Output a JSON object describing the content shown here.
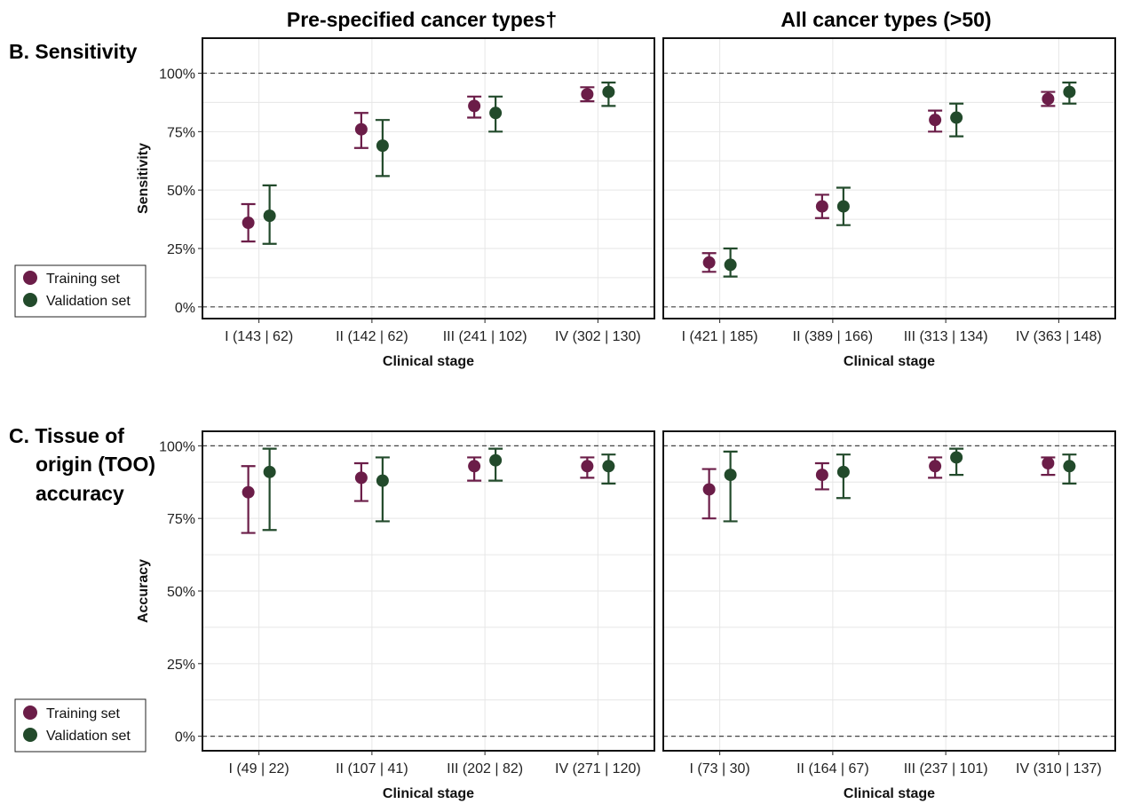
{
  "column_titles": [
    "Pre-specified cancer types†",
    "All cancer types (>50)"
  ],
  "row_titles": {
    "sensitivity": [
      "B. Sensitivity"
    ],
    "too": [
      "C. Tissue of",
      "origin (TOO)",
      "accuracy"
    ]
  },
  "legend": {
    "training_label": "Training set",
    "validation_label": "Validation set"
  },
  "colors": {
    "training": "#6b1d48",
    "validation": "#224a2b",
    "panel_border": "#111111",
    "grid": "#e6e6e6",
    "reference_line": "#444444"
  },
  "chart_data": [
    {
      "type": "scatter",
      "title": "Pre-specified cancer types†",
      "row": "B. Sensitivity",
      "xlabel": "Clinical stage",
      "ylabel": "Sensitivity",
      "ylim": [
        -0.05,
        1.15
      ],
      "yticks": [
        "0%",
        "25%",
        "50%",
        "75%",
        "100%"
      ],
      "categories": [
        "I (143 | 62)",
        "II (142 | 62)",
        "III (241 | 102)",
        "IV (302 | 130)"
      ],
      "series": [
        {
          "name": "Training set",
          "values": [
            0.36,
            0.76,
            0.86,
            0.91
          ],
          "lower": [
            0.28,
            0.68,
            0.81,
            0.88
          ],
          "upper": [
            0.44,
            0.83,
            0.9,
            0.94
          ]
        },
        {
          "name": "Validation set",
          "values": [
            0.39,
            0.69,
            0.83,
            0.92
          ],
          "lower": [
            0.27,
            0.56,
            0.75,
            0.86
          ],
          "upper": [
            0.52,
            0.8,
            0.9,
            0.96
          ]
        }
      ],
      "reference_lines": [
        0,
        1
      ],
      "grid": true
    },
    {
      "type": "scatter",
      "title": "All cancer types (>50)",
      "row": "B. Sensitivity",
      "xlabel": "Clinical stage",
      "ylabel": "",
      "ylim": [
        -0.05,
        1.15
      ],
      "yticks": [],
      "categories": [
        "I (421 | 185)",
        "II (389 | 166)",
        "III (313 | 134)",
        "IV (363 | 148)"
      ],
      "series": [
        {
          "name": "Training set",
          "values": [
            0.19,
            0.43,
            0.8,
            0.89
          ],
          "lower": [
            0.15,
            0.38,
            0.75,
            0.86
          ],
          "upper": [
            0.23,
            0.48,
            0.84,
            0.92
          ]
        },
        {
          "name": "Validation set",
          "values": [
            0.18,
            0.43,
            0.81,
            0.92
          ],
          "lower": [
            0.13,
            0.35,
            0.73,
            0.87
          ],
          "upper": [
            0.25,
            0.51,
            0.87,
            0.96
          ]
        }
      ],
      "reference_lines": [
        0,
        1
      ],
      "grid": true
    },
    {
      "type": "scatter",
      "title": "",
      "row": "C. Tissue of origin (TOO) accuracy",
      "xlabel": "Clinical stage",
      "ylabel": "Accuracy",
      "ylim": [
        -0.05,
        1.05
      ],
      "yticks": [
        "0%",
        "25%",
        "50%",
        "75%",
        "100%"
      ],
      "categories": [
        "I (49 | 22)",
        "II (107 | 41)",
        "III (202 | 82)",
        "IV (271 | 120)"
      ],
      "series": [
        {
          "name": "Training set",
          "values": [
            0.84,
            0.89,
            0.93,
            0.93
          ],
          "lower": [
            0.7,
            0.81,
            0.88,
            0.89
          ],
          "upper": [
            0.93,
            0.94,
            0.96,
            0.96
          ]
        },
        {
          "name": "Validation set",
          "values": [
            0.91,
            0.88,
            0.95,
            0.93
          ],
          "lower": [
            0.71,
            0.74,
            0.88,
            0.87
          ],
          "upper": [
            0.99,
            0.96,
            0.99,
            0.97
          ]
        }
      ],
      "reference_lines": [
        0,
        1
      ],
      "grid": true
    },
    {
      "type": "scatter",
      "title": "",
      "row": "C. Tissue of origin (TOO) accuracy",
      "xlabel": "Clinical stage",
      "ylabel": "",
      "ylim": [
        -0.05,
        1.05
      ],
      "yticks": [],
      "categories": [
        "I (73 | 30)",
        "II (164 | 67)",
        "III (237 | 101)",
        "IV (310 | 137)"
      ],
      "series": [
        {
          "name": "Training set",
          "values": [
            0.85,
            0.9,
            0.93,
            0.94
          ],
          "lower": [
            0.75,
            0.85,
            0.89,
            0.9
          ],
          "upper": [
            0.92,
            0.94,
            0.96,
            0.96
          ]
        },
        {
          "name": "Validation set",
          "values": [
            0.9,
            0.91,
            0.96,
            0.93
          ],
          "lower": [
            0.74,
            0.82,
            0.9,
            0.87
          ],
          "upper": [
            0.98,
            0.97,
            0.99,
            0.97
          ]
        }
      ],
      "reference_lines": [
        0,
        1
      ],
      "grid": true
    }
  ]
}
